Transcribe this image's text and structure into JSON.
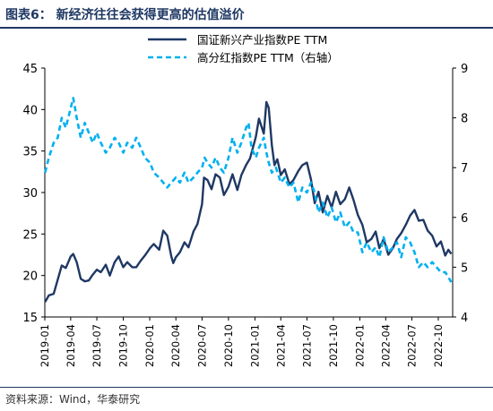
{
  "figure": {
    "title": "图表6：  新经济往往会获得更高的估值溢价",
    "source": "资料来源：Wind，华泰研究"
  },
  "chart_data": {
    "type": "line",
    "x_labels": [
      "2019-01",
      "2019-04",
      "2019-07",
      "2019-10",
      "2020-01",
      "2020-04",
      "2020-07",
      "2020-10",
      "2021-01",
      "2021-04",
      "2021-07",
      "2021-10",
      "2022-01",
      "2022-04",
      "2022-07",
      "2022-10"
    ],
    "left_axis": {
      "ylim": [
        15,
        45
      ],
      "ticks": [
        15,
        20,
        25,
        30,
        35,
        40,
        45
      ]
    },
    "right_axis": {
      "ylim": [
        4,
        9
      ],
      "ticks": [
        4,
        5,
        6,
        7,
        8,
        9
      ]
    },
    "legend": {
      "position": "top"
    },
    "series": [
      {
        "name": "国证新兴产业指数PE TTM",
        "axis": "left",
        "style": "solid",
        "color": "#1f3864",
        "points": [
          [
            "2019-01-02",
            16.8
          ],
          [
            "2019-01-15",
            17.6
          ],
          [
            "2019-02-01",
            17.8
          ],
          [
            "2019-02-15",
            19.5
          ],
          [
            "2019-03-01",
            21.2
          ],
          [
            "2019-03-15",
            20.9
          ],
          [
            "2019-04-01",
            22.3
          ],
          [
            "2019-04-10",
            22.6
          ],
          [
            "2019-04-22",
            21.6
          ],
          [
            "2019-05-06",
            19.6
          ],
          [
            "2019-05-20",
            19.3
          ],
          [
            "2019-06-03",
            19.4
          ],
          [
            "2019-06-17",
            20.1
          ],
          [
            "2019-07-01",
            20.7
          ],
          [
            "2019-07-15",
            20.4
          ],
          [
            "2019-08-01",
            21.3
          ],
          [
            "2019-08-15",
            20.0
          ],
          [
            "2019-09-01",
            21.6
          ],
          [
            "2019-09-15",
            22.3
          ],
          [
            "2019-10-01",
            21.0
          ],
          [
            "2019-10-15",
            21.6
          ],
          [
            "2019-11-01",
            21.0
          ],
          [
            "2019-11-15",
            21.0
          ],
          [
            "2019-12-01",
            21.8
          ],
          [
            "2019-12-15",
            22.4
          ],
          [
            "2020-01-02",
            23.3
          ],
          [
            "2020-01-15",
            23.8
          ],
          [
            "2020-02-03",
            23.1
          ],
          [
            "2020-02-17",
            25.4
          ],
          [
            "2020-03-02",
            24.8
          ],
          [
            "2020-03-16",
            22.3
          ],
          [
            "2020-03-23",
            21.5
          ],
          [
            "2020-04-01",
            22.2
          ],
          [
            "2020-04-15",
            22.8
          ],
          [
            "2020-05-01",
            24.0
          ],
          [
            "2020-05-15",
            23.4
          ],
          [
            "2020-06-01",
            25.3
          ],
          [
            "2020-06-15",
            26.2
          ],
          [
            "2020-07-01",
            28.6
          ],
          [
            "2020-07-08",
            31.8
          ],
          [
            "2020-07-20",
            31.5
          ],
          [
            "2020-08-03",
            30.4
          ],
          [
            "2020-08-17",
            32.2
          ],
          [
            "2020-09-01",
            31.8
          ],
          [
            "2020-09-15",
            29.7
          ],
          [
            "2020-10-01",
            30.7
          ],
          [
            "2020-10-15",
            32.2
          ],
          [
            "2020-11-01",
            30.3
          ],
          [
            "2020-11-15",
            32.1
          ],
          [
            "2020-12-01",
            33.3
          ],
          [
            "2020-12-15",
            34.1
          ],
          [
            "2021-01-04",
            36.7
          ],
          [
            "2021-01-15",
            38.9
          ],
          [
            "2021-02-01",
            37.1
          ],
          [
            "2021-02-10",
            40.9
          ],
          [
            "2021-02-18",
            40.2
          ],
          [
            "2021-03-01",
            35.7
          ],
          [
            "2021-03-10",
            33.3
          ],
          [
            "2021-03-20",
            34.0
          ],
          [
            "2021-04-01",
            32.1
          ],
          [
            "2021-04-15",
            32.8
          ],
          [
            "2021-05-01",
            31.0
          ],
          [
            "2021-05-15",
            31.5
          ],
          [
            "2021-06-01",
            32.6
          ],
          [
            "2021-06-15",
            33.3
          ],
          [
            "2021-07-01",
            33.6
          ],
          [
            "2021-07-15",
            31.6
          ],
          [
            "2021-07-28",
            28.7
          ],
          [
            "2021-08-10",
            30.1
          ],
          [
            "2021-08-25",
            27.6
          ],
          [
            "2021-09-10",
            29.6
          ],
          [
            "2021-09-25",
            28.2
          ],
          [
            "2021-10-10",
            30.1
          ],
          [
            "2021-10-25",
            28.6
          ],
          [
            "2021-11-10",
            29.2
          ],
          [
            "2021-11-25",
            30.6
          ],
          [
            "2021-12-10",
            29.1
          ],
          [
            "2021-12-25",
            27.3
          ],
          [
            "2022-01-10",
            26.1
          ],
          [
            "2022-01-25",
            24.0
          ],
          [
            "2022-02-10",
            24.4
          ],
          [
            "2022-02-25",
            25.3
          ],
          [
            "2022-03-10",
            23.3
          ],
          [
            "2022-03-25",
            24.4
          ],
          [
            "2022-04-10",
            22.5
          ],
          [
            "2022-04-26",
            23.3
          ],
          [
            "2022-05-10",
            24.4
          ],
          [
            "2022-05-25",
            25.1
          ],
          [
            "2022-06-10",
            26.1
          ],
          [
            "2022-06-25",
            27.2
          ],
          [
            "2022-07-10",
            27.9
          ],
          [
            "2022-07-25",
            26.6
          ],
          [
            "2022-08-10",
            26.7
          ],
          [
            "2022-08-25",
            25.4
          ],
          [
            "2022-09-10",
            24.8
          ],
          [
            "2022-09-25",
            23.5
          ],
          [
            "2022-10-10",
            24.1
          ],
          [
            "2022-10-25",
            22.4
          ],
          [
            "2022-11-05",
            23.1
          ],
          [
            "2022-11-15",
            22.6
          ]
        ]
      },
      {
        "name": "高分红指数PE TTM（右轴）",
        "axis": "right",
        "style": "dashed",
        "color": "#00b0f0",
        "points": [
          [
            "2019-01-02",
            6.9
          ],
          [
            "2019-01-15",
            7.2
          ],
          [
            "2019-02-01",
            7.5
          ],
          [
            "2019-02-15",
            7.6
          ],
          [
            "2019-03-01",
            8.0
          ],
          [
            "2019-03-15",
            7.8
          ],
          [
            "2019-04-01",
            8.2
          ],
          [
            "2019-04-10",
            8.4
          ],
          [
            "2019-04-22",
            8.0
          ],
          [
            "2019-05-06",
            7.6
          ],
          [
            "2019-05-20",
            7.9
          ],
          [
            "2019-06-03",
            7.7
          ],
          [
            "2019-06-17",
            7.5
          ],
          [
            "2019-07-01",
            7.7
          ],
          [
            "2019-07-15",
            7.5
          ],
          [
            "2019-08-01",
            7.3
          ],
          [
            "2019-08-15",
            7.4
          ],
          [
            "2019-09-01",
            7.6
          ],
          [
            "2019-09-15",
            7.5
          ],
          [
            "2019-10-01",
            7.3
          ],
          [
            "2019-10-15",
            7.5
          ],
          [
            "2019-11-01",
            7.4
          ],
          [
            "2019-11-15",
            7.6
          ],
          [
            "2019-12-01",
            7.4
          ],
          [
            "2019-12-15",
            7.2
          ],
          [
            "2020-01-02",
            7.1
          ],
          [
            "2020-01-15",
            6.9
          ],
          [
            "2020-02-03",
            6.8
          ],
          [
            "2020-02-17",
            6.7
          ],
          [
            "2020-03-02",
            6.6
          ],
          [
            "2020-03-16",
            6.7
          ],
          [
            "2020-04-01",
            6.8
          ],
          [
            "2020-04-15",
            6.7
          ],
          [
            "2020-05-01",
            6.9
          ],
          [
            "2020-05-15",
            6.7
          ],
          [
            "2020-06-01",
            6.8
          ],
          [
            "2020-06-15",
            6.9
          ],
          [
            "2020-07-01",
            7.0
          ],
          [
            "2020-07-10",
            7.2
          ],
          [
            "2020-07-20",
            7.1
          ],
          [
            "2020-08-03",
            7.0
          ],
          [
            "2020-08-17",
            7.2
          ],
          [
            "2020-09-01",
            7.0
          ],
          [
            "2020-09-15",
            6.9
          ],
          [
            "2020-10-01",
            7.2
          ],
          [
            "2020-10-15",
            7.6
          ],
          [
            "2020-11-01",
            7.3
          ],
          [
            "2020-11-15",
            7.5
          ],
          [
            "2020-12-01",
            7.8
          ],
          [
            "2020-12-10",
            7.9
          ],
          [
            "2020-12-20",
            7.4
          ],
          [
            "2021-01-04",
            7.2
          ],
          [
            "2021-01-15",
            7.4
          ],
          [
            "2021-02-01",
            7.6
          ],
          [
            "2021-02-10",
            7.3
          ],
          [
            "2021-02-18",
            7.1
          ],
          [
            "2021-03-01",
            6.9
          ],
          [
            "2021-03-15",
            7.0
          ],
          [
            "2021-04-01",
            6.7
          ],
          [
            "2021-04-15",
            6.8
          ],
          [
            "2021-05-01",
            6.6
          ],
          [
            "2021-05-15",
            6.7
          ],
          [
            "2021-06-01",
            6.3
          ],
          [
            "2021-06-15",
            6.6
          ],
          [
            "2021-07-01",
            6.5
          ],
          [
            "2021-07-15",
            6.7
          ],
          [
            "2021-07-28",
            6.5
          ],
          [
            "2021-08-10",
            6.1
          ],
          [
            "2021-08-25",
            6.3
          ],
          [
            "2021-09-10",
            6.0
          ],
          [
            "2021-09-25",
            6.2
          ],
          [
            "2021-10-10",
            5.9
          ],
          [
            "2021-10-25",
            6.1
          ],
          [
            "2021-11-10",
            5.8
          ],
          [
            "2021-11-25",
            5.9
          ],
          [
            "2021-12-10",
            5.7
          ],
          [
            "2021-12-25",
            5.7
          ],
          [
            "2022-01-10",
            5.3
          ],
          [
            "2022-01-25",
            5.5
          ],
          [
            "2022-02-10",
            5.3
          ],
          [
            "2022-02-25",
            5.4
          ],
          [
            "2022-03-10",
            5.2
          ],
          [
            "2022-03-25",
            5.6
          ],
          [
            "2022-04-10",
            5.3
          ],
          [
            "2022-04-26",
            5.4
          ],
          [
            "2022-05-10",
            5.5
          ],
          [
            "2022-05-25",
            5.2
          ],
          [
            "2022-06-10",
            5.6
          ],
          [
            "2022-06-25",
            5.5
          ],
          [
            "2022-07-10",
            5.3
          ],
          [
            "2022-07-25",
            5.0
          ],
          [
            "2022-08-10",
            5.1
          ],
          [
            "2022-08-25",
            5.0
          ],
          [
            "2022-09-10",
            5.1
          ],
          [
            "2022-09-25",
            5.0
          ],
          [
            "2022-10-10",
            4.9
          ],
          [
            "2022-10-25",
            4.9
          ],
          [
            "2022-11-05",
            4.8
          ],
          [
            "2022-11-15",
            4.7
          ]
        ]
      }
    ]
  }
}
